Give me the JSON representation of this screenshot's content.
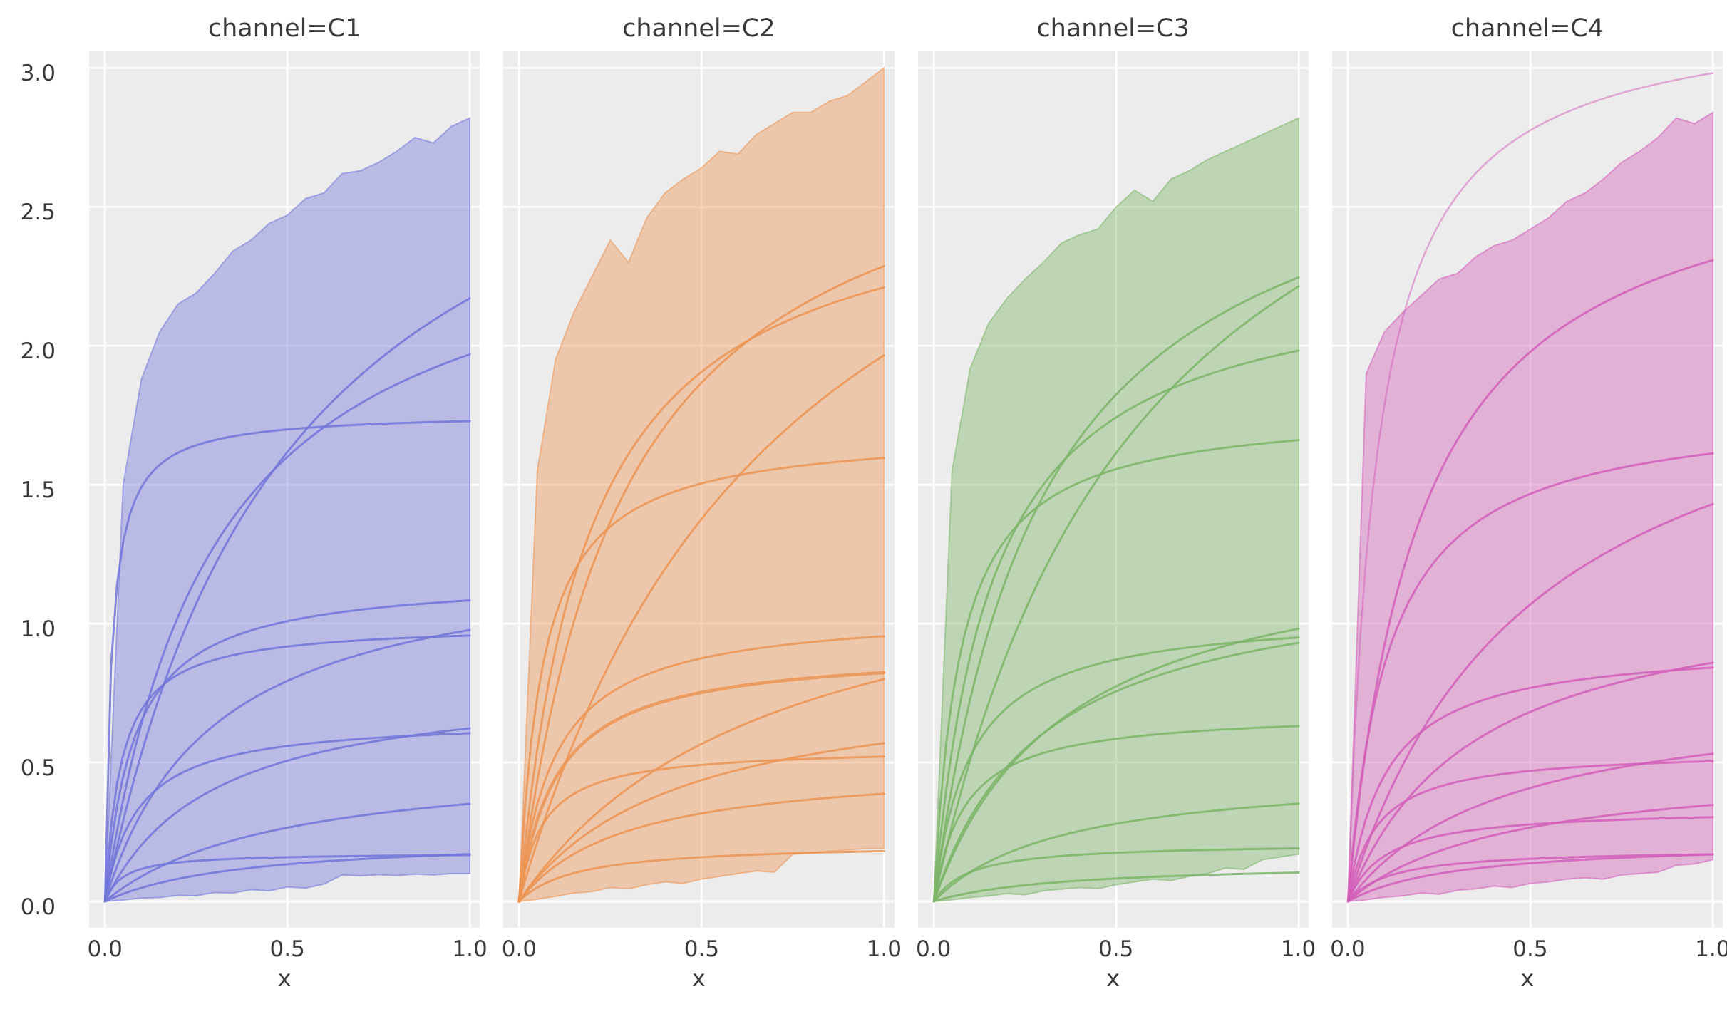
{
  "figure": {
    "background": "#ffffff",
    "panel_background": "#ececec",
    "grid_color": "#ffffff",
    "text_color": "#3a3a3a"
  },
  "axes": {
    "xlabel": "x",
    "xticks": [
      "0.0",
      "0.5",
      "1.0"
    ],
    "xtick_values": [
      0,
      0.5,
      1
    ],
    "yticks": [
      "3.0",
      "2.5",
      "2.0",
      "1.5",
      "1.0",
      "0.5",
      "0.0"
    ],
    "ytick_values": [
      3,
      2.5,
      2,
      1.5,
      1,
      0.5,
      0
    ],
    "ygrid_values": [
      0,
      0.5,
      1,
      1.5,
      2,
      2.5,
      3
    ],
    "xlim": [
      -0.0434,
      1.0276
    ],
    "ylim": [
      -0.095,
      3.06
    ]
  },
  "chart_data": [
    {
      "type": "line",
      "title": "channel=C1",
      "facet": "C1",
      "color": "#7276d9",
      "xlabel": "x",
      "band": {
        "x": [
          0,
          0.05,
          0.1,
          0.15,
          0.2,
          0.25,
          0.3,
          0.35,
          0.4,
          0.45,
          0.5,
          0.55,
          0.6,
          0.65,
          0.7,
          0.75,
          0.8,
          0.85,
          0.9,
          0.95,
          1
        ],
        "upper": [
          0,
          1.5,
          1.88,
          2.05,
          2.15,
          2.19,
          2.26,
          2.34,
          2.38,
          2.44,
          2.47,
          2.53,
          2.55,
          2.62,
          2.63,
          2.66,
          2.7,
          2.75,
          2.73,
          2.79,
          2.82
        ],
        "lower": [
          0,
          0.005,
          0.012,
          0.014,
          0.022,
          0.02,
          0.032,
          0.03,
          0.042,
          0.038,
          0.052,
          0.048,
          0.062,
          0.095,
          0.092,
          0.096,
          0.093,
          0.098,
          0.095,
          0.1,
          0.1
        ]
      },
      "curves": [
        {
          "V": 1.76,
          "K": 0.018,
          "end": 1.73
        },
        {
          "V": 3.3,
          "K": 0.52,
          "end": 2.17
        },
        {
          "V": 2.56,
          "K": 0.3,
          "end": 1.97
        },
        {
          "V": 1.17,
          "K": 0.08,
          "end": 1.08
        },
        {
          "V": 1.27,
          "K": 0.3,
          "end": 0.98
        },
        {
          "V": 1.0,
          "K": 0.045,
          "end": 0.96
        },
        {
          "V": 0.81,
          "K": 0.3,
          "end": 0.62
        },
        {
          "V": 0.66,
          "K": 0.09,
          "end": 0.61
        },
        {
          "V": 0.52,
          "K": 0.48,
          "end": 0.35
        },
        {
          "V": 0.235,
          "K": 0.38,
          "end": 0.17
        },
        {
          "V": 0.175,
          "K": 0.05,
          "end": 0.17
        }
      ]
    },
    {
      "type": "line",
      "title": "channel=C2",
      "facet": "C2",
      "color": "#ec9454",
      "xlabel": "x",
      "band": {
        "x": [
          0,
          0.05,
          0.1,
          0.15,
          0.2,
          0.25,
          0.3,
          0.35,
          0.4,
          0.45,
          0.5,
          0.55,
          0.6,
          0.65,
          0.7,
          0.75,
          0.8,
          0.85,
          0.9,
          0.95,
          1
        ],
        "upper": [
          0,
          1.55,
          1.95,
          2.12,
          2.25,
          2.38,
          2.3,
          2.46,
          2.55,
          2.6,
          2.64,
          2.7,
          2.69,
          2.76,
          2.8,
          2.84,
          2.84,
          2.88,
          2.9,
          2.95,
          3.0
        ],
        "lower": [
          0,
          0.008,
          0.018,
          0.03,
          0.035,
          0.05,
          0.045,
          0.06,
          0.07,
          0.065,
          0.08,
          0.09,
          0.1,
          0.11,
          0.105,
          0.17,
          0.175,
          0.18,
          0.185,
          0.19,
          0.19
        ]
      },
      "curves": [
        {
          "V": 2.95,
          "K": 0.29,
          "end": 2.29
        },
        {
          "V": 2.63,
          "K": 0.19,
          "end": 2.21
        },
        {
          "V": 3.44,
          "K": 0.75,
          "end": 1.97
        },
        {
          "V": 1.7,
          "K": 0.065,
          "end": 1.6
        },
        {
          "V": 1.05,
          "K": 0.1,
          "end": 0.95
        },
        {
          "V": 0.91,
          "K": 0.105,
          "end": 0.82,
          "lw": 4.6
        },
        {
          "V": 1.36,
          "K": 0.7,
          "end": 0.8
        },
        {
          "V": 0.82,
          "K": 0.44,
          "end": 0.57
        },
        {
          "V": 0.555,
          "K": 0.065,
          "end": 0.52
        },
        {
          "V": 0.5,
          "K": 0.29,
          "end": 0.39
        },
        {
          "V": 0.21,
          "K": 0.16,
          "end": 0.18
        }
      ]
    },
    {
      "type": "line",
      "title": "channel=C3",
      "facet": "C3",
      "color": "#7db468",
      "xlabel": "x",
      "band": {
        "x": [
          0,
          0.05,
          0.1,
          0.15,
          0.2,
          0.25,
          0.3,
          0.35,
          0.4,
          0.45,
          0.5,
          0.55,
          0.6,
          0.65,
          0.7,
          0.75,
          0.8,
          0.85,
          0.9,
          0.95,
          1
        ],
        "upper": [
          0,
          1.55,
          1.92,
          2.08,
          2.17,
          2.24,
          2.3,
          2.37,
          2.4,
          2.42,
          2.5,
          2.56,
          2.52,
          2.6,
          2.63,
          2.67,
          2.7,
          2.73,
          2.76,
          2.79,
          2.82
        ],
        "lower": [
          0,
          0.006,
          0.014,
          0.02,
          0.028,
          0.024,
          0.038,
          0.044,
          0.05,
          0.046,
          0.06,
          0.07,
          0.08,
          0.075,
          0.09,
          0.1,
          0.12,
          0.115,
          0.15,
          0.16,
          0.17
        ]
      },
      "curves": [
        {
          "V": 2.92,
          "K": 0.3,
          "end": 2.25
        },
        {
          "V": 3.52,
          "K": 0.59,
          "end": 2.21
        },
        {
          "V": 2.3,
          "K": 0.16,
          "end": 1.98
        },
        {
          "V": 1.78,
          "K": 0.072,
          "end": 1.66
        },
        {
          "V": 1.34,
          "K": 0.365,
          "end": 0.98
        },
        {
          "V": 1.045,
          "K": 0.1,
          "end": 0.95
        },
        {
          "V": 1.21,
          "K": 0.3,
          "end": 0.93
        },
        {
          "V": 0.685,
          "K": 0.085,
          "end": 0.63
        },
        {
          "V": 0.475,
          "K": 0.35,
          "end": 0.35
        },
        {
          "V": 0.21,
          "K": 0.1,
          "end": 0.19
        },
        {
          "V": 0.14,
          "K": 0.35,
          "end": 0.1
        }
      ]
    },
    {
      "type": "line",
      "title": "channel=C4",
      "facet": "C4",
      "color": "#d25fb8",
      "xlabel": "x",
      "band": {
        "x": [
          0,
          0.05,
          0.1,
          0.15,
          0.2,
          0.25,
          0.3,
          0.35,
          0.4,
          0.45,
          0.5,
          0.55,
          0.6,
          0.65,
          0.7,
          0.75,
          0.8,
          0.85,
          0.9,
          0.95,
          1
        ],
        "upper": [
          0,
          1.9,
          2.05,
          2.12,
          2.18,
          2.24,
          2.26,
          2.32,
          2.36,
          2.38,
          2.42,
          2.46,
          2.52,
          2.55,
          2.6,
          2.66,
          2.7,
          2.75,
          2.82,
          2.8,
          2.84
        ],
        "lower": [
          0,
          0.006,
          0.015,
          0.02,
          0.03,
          0.026,
          0.04,
          0.045,
          0.055,
          0.05,
          0.065,
          0.07,
          0.08,
          0.085,
          0.08,
          0.095,
          0.1,
          0.105,
          0.13,
          0.135,
          0.15
        ]
      },
      "curves": [
        {
          "V": 3.22,
          "K": 0.08,
          "end": 2.98,
          "lw": 2.6,
          "op": 0.5
        },
        {
          "V": 2.77,
          "K": 0.2,
          "end": 2.31
        },
        {
          "V": 1.79,
          "K": 0.11,
          "end": 1.61
        },
        {
          "V": 2.16,
          "K": 0.51,
          "end": 1.43
        },
        {
          "V": 1.16,
          "K": 0.35,
          "end": 0.86
        },
        {
          "V": 0.93,
          "K": 0.105,
          "end": 0.84
        },
        {
          "V": 0.76,
          "K": 0.43,
          "end": 0.53
        },
        {
          "V": 0.545,
          "K": 0.08,
          "end": 0.5
        },
        {
          "V": 0.5,
          "K": 0.44,
          "end": 0.35
        },
        {
          "V": 0.335,
          "K": 0.105,
          "end": 0.3
        },
        {
          "V": 0.22,
          "K": 0.3,
          "end": 0.17
        },
        {
          "V": 0.19,
          "K": 0.12,
          "end": 0.17
        }
      ]
    }
  ]
}
